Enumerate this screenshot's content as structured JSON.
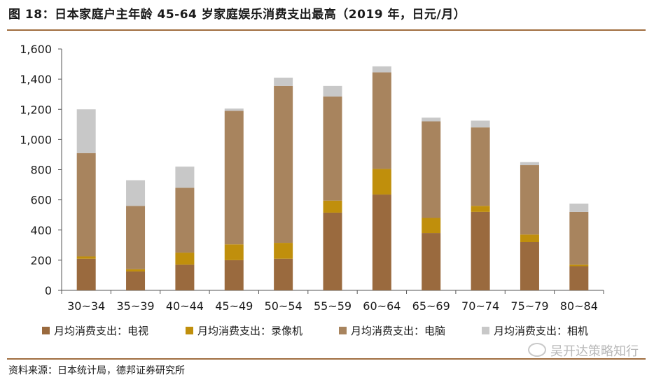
{
  "header": {
    "title": "图 18：日本家庭户主年龄 45-64 岁家庭娱乐消费支出最高（2019 年，日元/月）"
  },
  "footer": {
    "source": "资料来源：日本统计局，德邦证券研究所",
    "watermark": "吴开达策略知行"
  },
  "chart_data": {
    "type": "bar",
    "stacked": true,
    "categories": [
      "30~34",
      "35~39",
      "40~44",
      "45~49",
      "50~54",
      "55~59",
      "60~64",
      "65~69",
      "70~74",
      "75~79",
      "80~84"
    ],
    "ylim": [
      0,
      1600
    ],
    "yticks": [
      "0",
      "200",
      "400",
      "600",
      "800",
      "1,000",
      "1,200",
      "1,400",
      "1,600"
    ],
    "grid": false,
    "legend_position": "bottom",
    "series": [
      {
        "name": "月均消费支出：电视",
        "color": "#9a6a3e",
        "values": [
          210,
          125,
          170,
          200,
          210,
          515,
          635,
          380,
          520,
          320,
          160
        ]
      },
      {
        "name": "月均消费支出：录像机",
        "color": "#c08f0c",
        "values": [
          15,
          15,
          80,
          105,
          105,
          80,
          170,
          100,
          40,
          50,
          10
        ]
      },
      {
        "name": "月均消费支出：电脑",
        "color": "#a8845e",
        "values": [
          685,
          420,
          430,
          885,
          1040,
          690,
          640,
          640,
          520,
          460,
          350
        ]
      },
      {
        "name": "月均消费支出：相机",
        "color": "#c8c8c8",
        "values": [
          290,
          170,
          140,
          15,
          55,
          70,
          40,
          25,
          45,
          20,
          55
        ]
      }
    ]
  }
}
